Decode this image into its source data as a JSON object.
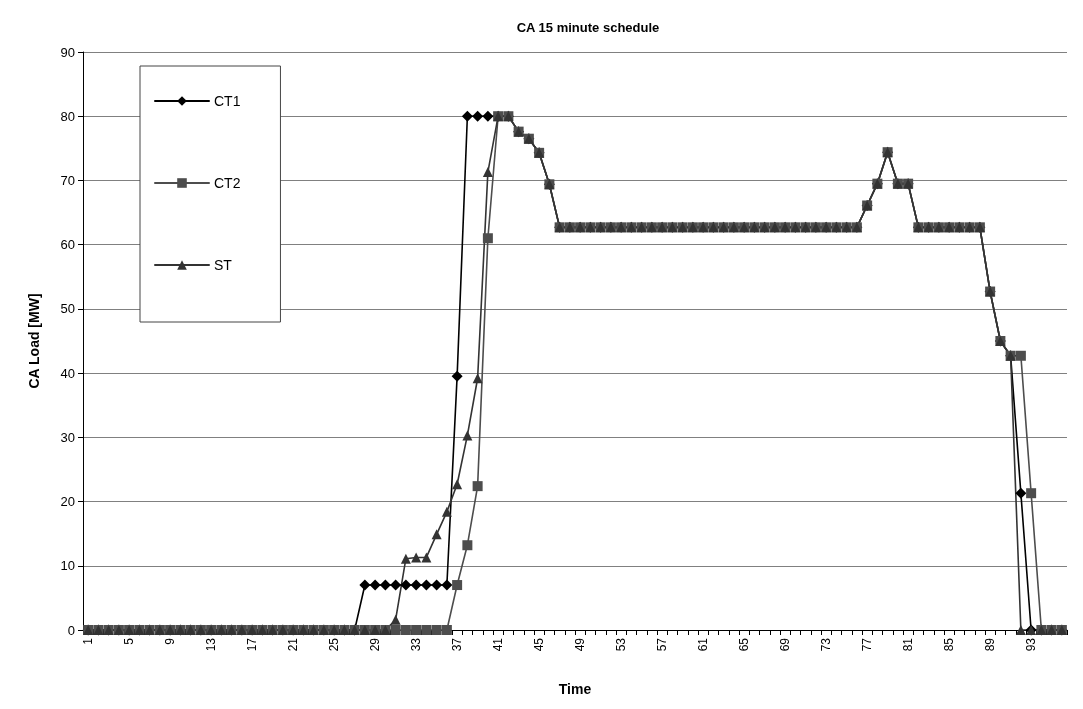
{
  "chart_data": {
    "type": "line",
    "title": "CA 15 minute schedule",
    "xlabel": "Time",
    "ylabel": "CA Load [MW]",
    "categories": [
      "1",
      null,
      null,
      null,
      "5",
      null,
      null,
      null,
      "9",
      null,
      null,
      null,
      "13",
      null,
      null,
      null,
      "17",
      null,
      null,
      null,
      "21",
      null,
      null,
      null,
      "25",
      null,
      null,
      null,
      "29",
      null,
      null,
      null,
      "33",
      null,
      null,
      null,
      "37",
      null,
      null,
      null,
      "41",
      null,
      null,
      null,
      "45",
      null,
      null,
      null,
      "49",
      null,
      null,
      null,
      "53",
      null,
      null,
      null,
      "57",
      null,
      null,
      null,
      "61",
      null,
      null,
      null,
      "65",
      null,
      null,
      null,
      "69",
      null,
      null,
      null,
      "73",
      null,
      null,
      null,
      "77",
      null,
      null,
      null,
      "81",
      null,
      null,
      null,
      "85",
      null,
      null,
      null,
      "89",
      null,
      null,
      null,
      "93",
      null,
      null,
      null
    ],
    "series": [
      {
        "name": "CT1",
        "color": "#000000",
        "marker": "diamond",
        "values": [
          0,
          0,
          0,
          0,
          0,
          0,
          0,
          0,
          0,
          0,
          0,
          0,
          0,
          0,
          0,
          0,
          0,
          0,
          0,
          0,
          0,
          0,
          0,
          0,
          0,
          0,
          0,
          7,
          7,
          7,
          7,
          7,
          7,
          7,
          7,
          7,
          39.5,
          80,
          80,
          80,
          80,
          80,
          77.6,
          76.5,
          74.3,
          69.4,
          62.7,
          62.7,
          62.7,
          62.7,
          62.7,
          62.7,
          62.7,
          62.7,
          62.7,
          62.7,
          62.7,
          62.7,
          62.7,
          62.7,
          62.7,
          62.7,
          62.7,
          62.7,
          62.7,
          62.7,
          62.7,
          62.7,
          62.7,
          62.7,
          62.7,
          62.7,
          62.7,
          62.7,
          62.7,
          62.7,
          66.1,
          69.5,
          74.4,
          69.5,
          69.5,
          62.7,
          62.7,
          62.7,
          62.7,
          62.7,
          62.7,
          62.7,
          52.7,
          45.0,
          42.7,
          21.3,
          0,
          0,
          0,
          0
        ]
      },
      {
        "name": "CT2",
        "color": "#4d4d4d",
        "marker": "square",
        "values": [
          0,
          0,
          0,
          0,
          0,
          0,
          0,
          0,
          0,
          0,
          0,
          0,
          0,
          0,
          0,
          0,
          0,
          0,
          0,
          0,
          0,
          0,
          0,
          0,
          0,
          0,
          0,
          0,
          0,
          0,
          0,
          0,
          0,
          0,
          0,
          0,
          7,
          13.2,
          22.4,
          61.0,
          80,
          80,
          77.6,
          76.5,
          74.3,
          69.4,
          62.7,
          62.7,
          62.7,
          62.7,
          62.7,
          62.7,
          62.7,
          62.7,
          62.7,
          62.7,
          62.7,
          62.7,
          62.7,
          62.7,
          62.7,
          62.7,
          62.7,
          62.7,
          62.7,
          62.7,
          62.7,
          62.7,
          62.7,
          62.7,
          62.7,
          62.7,
          62.7,
          62.7,
          62.7,
          62.7,
          66.1,
          69.5,
          74.4,
          69.5,
          69.5,
          62.7,
          62.7,
          62.7,
          62.7,
          62.7,
          62.7,
          62.7,
          52.7,
          45.0,
          42.7,
          42.7,
          21.3,
          0,
          0,
          0
        ]
      },
      {
        "name": "ST",
        "color": "#333333",
        "marker": "triangle",
        "values": [
          0,
          0,
          0,
          0,
          0,
          0,
          0,
          0,
          0,
          0,
          0,
          0,
          0,
          0,
          0,
          0,
          0,
          0,
          0,
          0,
          0,
          0,
          0,
          0,
          0,
          0,
          0,
          0,
          0,
          0,
          1.6,
          11.1,
          11.3,
          11.3,
          14.9,
          18.4,
          22.7,
          30.3,
          39.2,
          71.3,
          80,
          80,
          77.6,
          76.5,
          74.3,
          69.4,
          62.7,
          62.7,
          62.7,
          62.7,
          62.7,
          62.7,
          62.7,
          62.7,
          62.7,
          62.7,
          62.7,
          62.7,
          62.7,
          62.7,
          62.7,
          62.7,
          62.7,
          62.7,
          62.7,
          62.7,
          62.7,
          62.7,
          62.7,
          62.7,
          62.7,
          62.7,
          62.7,
          62.7,
          62.7,
          62.7,
          66.1,
          69.5,
          74.4,
          69.5,
          69.5,
          62.7,
          62.7,
          62.7,
          62.7,
          62.7,
          62.7,
          62.7,
          52.7,
          45.0,
          42.7,
          0,
          0,
          0,
          0,
          0
        ]
      }
    ],
    "ylim": [
      0,
      90
    ],
    "yticks": [
      0,
      10,
      20,
      30,
      40,
      50,
      60,
      70,
      80,
      90
    ],
    "grid": "y",
    "legend": "top left"
  }
}
